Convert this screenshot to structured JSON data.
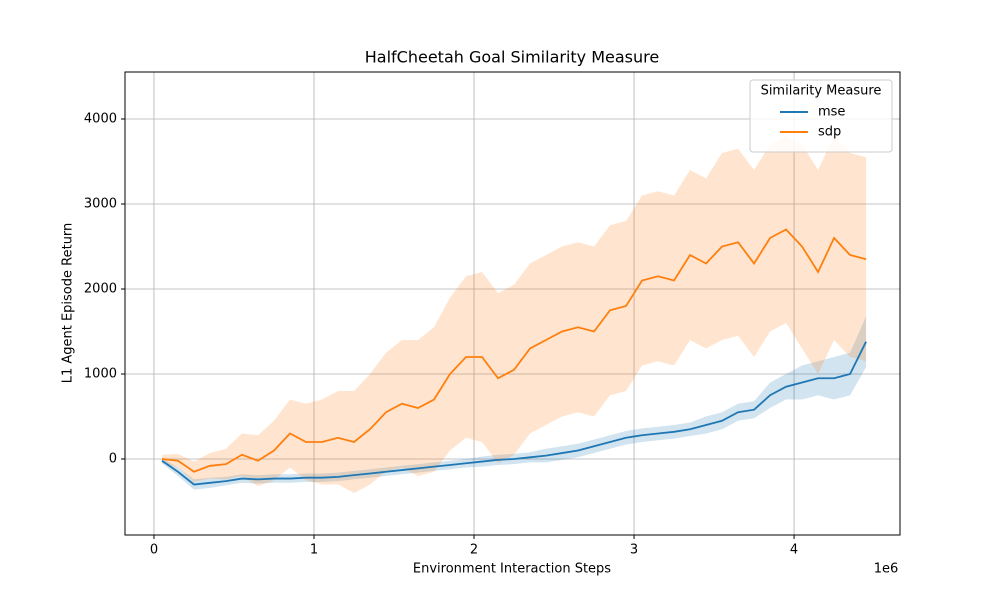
{
  "chart_data": {
    "type": "line",
    "title": "HalfCheetah Goal Similarity Measure",
    "x_label": "Environment Interaction Steps",
    "y_label": "L1 Agent Episode Return",
    "x_offset_label": "1e6",
    "legend_title": "Similarity Measure",
    "legend": "upper right",
    "grid": true,
    "xlim": [
      -181000,
      4662000
    ],
    "ylim": [
      -894,
      4553
    ],
    "xticks": [
      {
        "value": 0,
        "label": "0"
      },
      {
        "value": 1000000,
        "label": "1"
      },
      {
        "value": 2000000,
        "label": "2"
      },
      {
        "value": 3000000,
        "label": "3"
      },
      {
        "value": 4000000,
        "label": "4"
      }
    ],
    "yticks": [
      0,
      1000,
      2000,
      3000,
      4000
    ],
    "x": [
      50000,
      150000,
      250000,
      350000,
      450000,
      550000,
      650000,
      750000,
      850000,
      950000,
      1050000,
      1150000,
      1250000,
      1350000,
      1450000,
      1550000,
      1650000,
      1750000,
      1850000,
      1950000,
      2050000,
      2150000,
      2250000,
      2350000,
      2450000,
      2550000,
      2650000,
      2750000,
      2850000,
      2950000,
      3050000,
      3150000,
      3250000,
      3350000,
      3450000,
      3550000,
      3650000,
      3750000,
      3850000,
      3950000,
      4050000,
      4150000,
      4250000,
      4350000,
      4450000
    ],
    "series": [
      {
        "name": "mse",
        "color": "#1f77b4",
        "values": [
          -20,
          -150,
          -300,
          -280,
          -260,
          -230,
          -240,
          -230,
          -230,
          -220,
          -220,
          -210,
          -190,
          -170,
          -150,
          -130,
          -110,
          -90,
          -70,
          -50,
          -30,
          -10,
          0,
          20,
          40,
          70,
          100,
          150,
          200,
          250,
          280,
          300,
          320,
          350,
          400,
          450,
          550,
          580,
          750,
          850,
          900,
          950,
          950,
          1000,
          1380
        ],
        "lower": [
          -50,
          -200,
          -360,
          -340,
          -310,
          -280,
          -290,
          -280,
          -280,
          -270,
          -270,
          -260,
          -240,
          -220,
          -200,
          -180,
          -160,
          -140,
          -120,
          -100,
          -90,
          -70,
          -60,
          -40,
          -40,
          -10,
          20,
          70,
          120,
          170,
          200,
          220,
          240,
          270,
          300,
          350,
          450,
          480,
          600,
          700,
          700,
          750,
          700,
          750,
          1080
        ],
        "upper": [
          10,
          -100,
          -240,
          -220,
          -210,
          -180,
          -190,
          -180,
          -180,
          -170,
          -170,
          -160,
          -140,
          -120,
          -100,
          -80,
          -60,
          -40,
          -20,
          0,
          30,
          50,
          60,
          80,
          120,
          150,
          180,
          230,
          280,
          330,
          360,
          380,
          400,
          430,
          500,
          550,
          650,
          680,
          900,
          1000,
          1100,
          1150,
          1200,
          1250,
          1680
        ]
      },
      {
        "name": "sdp",
        "color": "#ff7f0e",
        "values": [
          0,
          -20,
          -150,
          -80,
          -60,
          50,
          -20,
          100,
          300,
          200,
          200,
          250,
          200,
          350,
          550,
          650,
          600,
          700,
          1000,
          1200,
          1200,
          950,
          1050,
          1300,
          1400,
          1500,
          1550,
          1500,
          1750,
          1800,
          2100,
          2150,
          2100,
          2400,
          2300,
          2500,
          2550,
          2300,
          2600,
          2700,
          2500,
          2200,
          2600,
          2400,
          2350
        ],
        "lower": [
          -50,
          -100,
          -270,
          -230,
          -240,
          -200,
          -320,
          -250,
          -100,
          -250,
          -300,
          -300,
          -400,
          -300,
          -150,
          -100,
          -200,
          -150,
          100,
          250,
          200,
          -50,
          50,
          300,
          400,
          500,
          550,
          500,
          750,
          800,
          1100,
          1150,
          1100,
          1400,
          1300,
          1400,
          1450,
          1200,
          1500,
          1600,
          1300,
          1000,
          1400,
          1200,
          1150
        ],
        "upper": [
          50,
          60,
          -30,
          70,
          120,
          300,
          280,
          450,
          700,
          650,
          700,
          800,
          800,
          1000,
          1250,
          1400,
          1400,
          1550,
          1900,
          2150,
          2200,
          1950,
          2050,
          2300,
          2400,
          2500,
          2550,
          2500,
          2750,
          2800,
          3100,
          3150,
          3100,
          3400,
          3300,
          3600,
          3650,
          3400,
          3700,
          3800,
          3700,
          3400,
          3800,
          3600,
          3550
        ]
      }
    ]
  }
}
